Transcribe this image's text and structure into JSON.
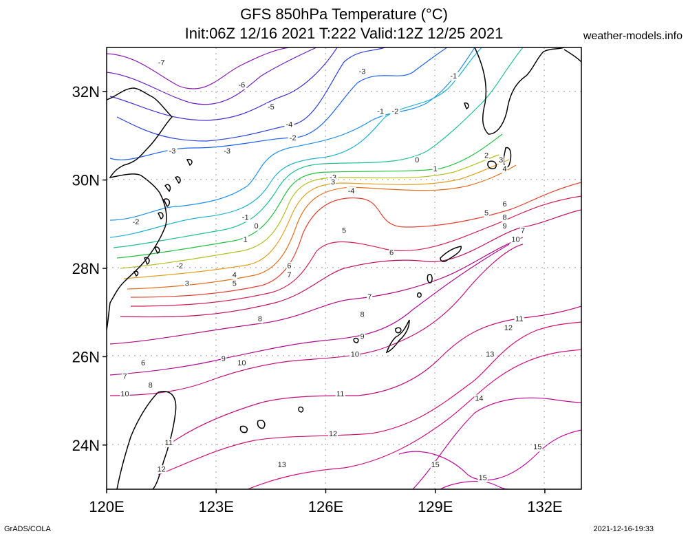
{
  "title_line1": "GFS 850hPa Temperature (°C)",
  "title_line2": "Init:06Z 12/16 2021 T:222 Valid:12Z 12/25 2021",
  "site": "weather-models.info",
  "footer_left": "GrADS/COLA",
  "footer_right": "2021-12-16-19:33",
  "map": {
    "lon_range": [
      120,
      133
    ],
    "lat_range": [
      23,
      33
    ],
    "x_ticks": [
      {
        "lon": 120,
        "label": "120E"
      },
      {
        "lon": 123,
        "label": "123E"
      },
      {
        "lon": 126,
        "label": "126E"
      },
      {
        "lon": 129,
        "label": "129E"
      },
      {
        "lon": 132,
        "label": "132E"
      }
    ],
    "y_ticks": [
      {
        "lat": 24,
        "label": "24N"
      },
      {
        "lat": 26,
        "label": "26N"
      },
      {
        "lat": 28,
        "label": "28N"
      },
      {
        "lat": 30,
        "label": "30N"
      },
      {
        "lat": 32,
        "label": "32N"
      }
    ],
    "contour_labels": [
      {
        "v": "-7",
        "lon": 121.5,
        "lat": 32.6
      },
      {
        "v": "-6",
        "lon": 123.7,
        "lat": 32.1
      },
      {
        "v": "-5",
        "lon": 124.5,
        "lat": 31.6
      },
      {
        "v": "-4",
        "lon": 125.0,
        "lat": 31.2
      },
      {
        "v": "-3",
        "lon": 123.3,
        "lat": 30.6
      },
      {
        "v": "-2",
        "lon": 125.1,
        "lat": 30.9
      },
      {
        "v": "-3",
        "lon": 127.0,
        "lat": 32.4
      },
      {
        "v": "-1",
        "lon": 127.5,
        "lat": 31.5
      },
      {
        "v": "-2",
        "lon": 127.9,
        "lat": 31.5
      },
      {
        "v": "-1",
        "lon": 129.5,
        "lat": 32.3
      },
      {
        "v": "0",
        "lon": 128.5,
        "lat": 30.4
      },
      {
        "v": "1",
        "lon": 129.0,
        "lat": 30.2
      },
      {
        "v": "2",
        "lon": 130.4,
        "lat": 30.5
      },
      {
        "v": "3",
        "lon": 130.8,
        "lat": 30.4
      },
      {
        "v": "4",
        "lon": 130.9,
        "lat": 30.2
      },
      {
        "v": "-3",
        "lon": 121.8,
        "lat": 30.6
      },
      {
        "v": "-2",
        "lon": 120.8,
        "lat": 29.0
      },
      {
        "v": "-1",
        "lon": 123.8,
        "lat": 29.1
      },
      {
        "v": "0",
        "lon": 124.1,
        "lat": 28.9
      },
      {
        "v": "1",
        "lon": 123.8,
        "lat": 28.6
      },
      {
        "v": "-2",
        "lon": 122.0,
        "lat": 28.0
      },
      {
        "v": "3",
        "lon": 122.2,
        "lat": 27.6
      },
      {
        "v": "4",
        "lon": 123.5,
        "lat": 27.8
      },
      {
        "v": "5",
        "lon": 123.5,
        "lat": 27.6
      },
      {
        "v": "-3",
        "lon": 126.2,
        "lat": 30.0
      },
      {
        "v": "3",
        "lon": 126.2,
        "lat": 29.9
      },
      {
        "v": "-4",
        "lon": 126.7,
        "lat": 29.7
      },
      {
        "v": "5",
        "lon": 126.5,
        "lat": 28.8
      },
      {
        "v": "6",
        "lon": 125.0,
        "lat": 28.0
      },
      {
        "v": "7",
        "lon": 125.0,
        "lat": 27.8
      },
      {
        "v": "6",
        "lon": 127.8,
        "lat": 28.3
      },
      {
        "v": "5",
        "lon": 130.4,
        "lat": 29.2
      },
      {
        "v": "6",
        "lon": 130.9,
        "lat": 29.4
      },
      {
        "v": "8",
        "lon": 130.9,
        "lat": 29.1
      },
      {
        "v": "9",
        "lon": 130.9,
        "lat": 28.9
      },
      {
        "v": "7",
        "lon": 131.4,
        "lat": 28.8
      },
      {
        "v": "10",
        "lon": 131.2,
        "lat": 28.6
      },
      {
        "v": "7",
        "lon": 127.2,
        "lat": 27.3
      },
      {
        "v": "8",
        "lon": 127.0,
        "lat": 26.9
      },
      {
        "v": "8",
        "lon": 124.2,
        "lat": 26.8
      },
      {
        "v": "9",
        "lon": 127.0,
        "lat": 26.4
      },
      {
        "v": "10",
        "lon": 126.8,
        "lat": 26.0
      },
      {
        "v": "9",
        "lon": 123.2,
        "lat": 25.9
      },
      {
        "v": "10",
        "lon": 123.7,
        "lat": 25.8
      },
      {
        "v": "6",
        "lon": 121.0,
        "lat": 25.8
      },
      {
        "v": "7",
        "lon": 120.5,
        "lat": 25.5
      },
      {
        "v": "8",
        "lon": 121.2,
        "lat": 25.3
      },
      {
        "v": "10",
        "lon": 120.5,
        "lat": 25.1
      },
      {
        "v": "11",
        "lon": 131.3,
        "lat": 26.8
      },
      {
        "v": "12",
        "lon": 131.0,
        "lat": 26.6
      },
      {
        "v": "13",
        "lon": 130.5,
        "lat": 26.0
      },
      {
        "v": "11",
        "lon": 126.4,
        "lat": 25.1
      },
      {
        "v": "14",
        "lon": 130.2,
        "lat": 25.0
      },
      {
        "v": "12",
        "lon": 126.2,
        "lat": 24.2
      },
      {
        "v": "11",
        "lon": 121.7,
        "lat": 24.0
      },
      {
        "v": "12",
        "lon": 121.5,
        "lat": 23.4
      },
      {
        "v": "13",
        "lon": 124.8,
        "lat": 23.5
      },
      {
        "v": "15",
        "lon": 129.0,
        "lat": 23.5
      },
      {
        "v": "15",
        "lon": 131.8,
        "lat": 23.9
      },
      {
        "v": "15",
        "lon": 130.3,
        "lat": 23.2
      }
    ]
  }
}
